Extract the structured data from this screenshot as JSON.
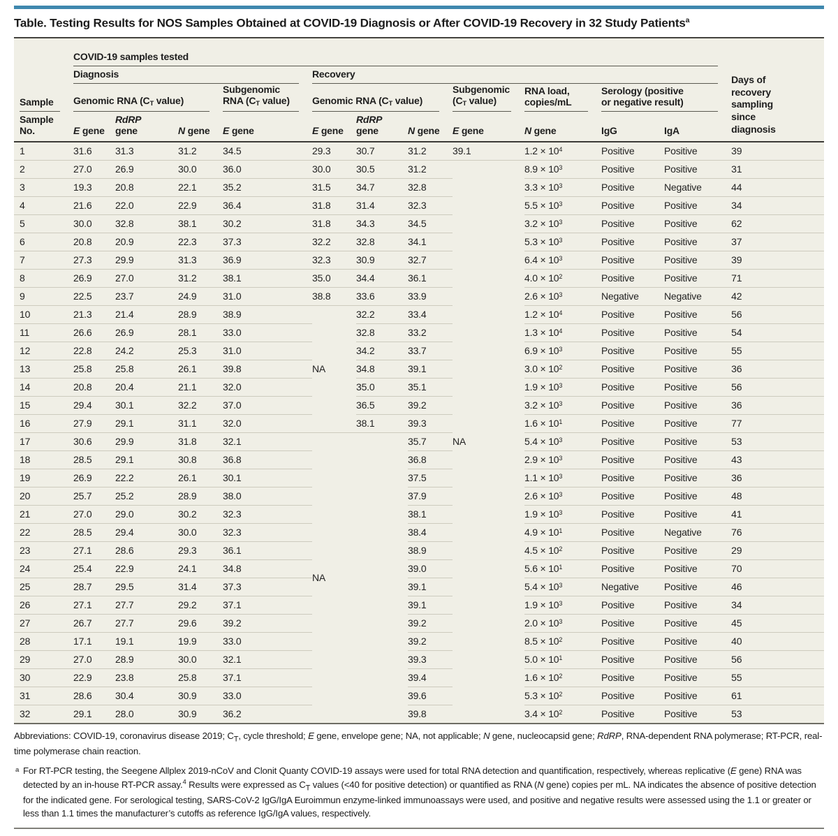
{
  "title": "Table. Testing Results for NOS Samples Obtained at COVID-19 Diagnosis or After COVID-19 Recovery in 32 Study Patients<sup>a</sup>",
  "colors": {
    "accent_bar": "#3F88AE",
    "table_background": "#F0EFE6",
    "rule_dark": "#3C3B37",
    "row_divider": "#CDCBBE"
  },
  "table": {
    "header_rows": [
      [
        {
          "t": "",
          "cls": "c0",
          "name": "header-spacer"
        },
        {
          "t": "COVID-19 samples tested",
          "c": 11,
          "u": true,
          "name": "group-covid-samples-tested"
        },
        {
          "t": "Days of<br>recovery<br>sampling<br>since<br>diagnosis",
          "r": 4,
          "cls": "days hbot",
          "name": "col-days-of-recovery"
        }
      ],
      [
        {
          "t": "",
          "cls": "c0",
          "name": "header-spacer"
        },
        {
          "t": "Diagnosis",
          "c": 4,
          "u": true,
          "name": "group-diagnosis"
        },
        {
          "t": "Recovery",
          "c": 7,
          "u": true,
          "name": "group-recovery"
        }
      ],
      [
        {
          "t": "Sample",
          "u": true,
          "cls": "c0",
          "name": "col-sample"
        },
        {
          "t": "Genomic RNA (C<sub>T</sub> value)",
          "c": 3,
          "u": true,
          "name": "group-diagnosis-genomic-rna"
        },
        {
          "t": "Subgenomic<br>RNA (C<sub>T</sub> value)",
          "u": true,
          "name": "group-diagnosis-subgenomic-rna"
        },
        {
          "t": "Genomic RNA (C<sub>T</sub> value)",
          "c": 3,
          "u": true,
          "name": "group-recovery-genomic-rna"
        },
        {
          "t": "Subgenomic<br>(C<sub>T</sub> value)",
          "u": true,
          "name": "group-recovery-subgenomic"
        },
        {
          "t": "RNA load,<br>copies/mL",
          "u": true,
          "name": "group-rna-load"
        },
        {
          "t": "Serology (positive<br>or negative result)",
          "c": 2,
          "u": true,
          "name": "group-serology"
        }
      ],
      [
        {
          "t": "Sample<br>No.",
          "cls": "c0",
          "name": "col-sample-no"
        },
        {
          "t": "<i>E</i> gene",
          "name": "col-diag-e-gene"
        },
        {
          "t": "<i>RdRP</i><br>gene",
          "name": "col-diag-rdrp-gene"
        },
        {
          "t": "<i>N</i> gene",
          "name": "col-diag-n-gene"
        },
        {
          "t": "<i>E</i> gene",
          "name": "col-diag-subgenomic-e-gene"
        },
        {
          "t": "<i>E</i> gene",
          "name": "col-rec-e-gene"
        },
        {
          "t": "<i>RdRP</i><br>gene",
          "name": "col-rec-rdrp-gene"
        },
        {
          "t": "<i>N</i> gene",
          "name": "col-rec-n-gene"
        },
        {
          "t": "<i>E</i> gene",
          "name": "col-rec-subgenomic-e-gene"
        },
        {
          "t": "<i>N</i> gene",
          "name": "col-rna-load-n-gene"
        },
        {
          "t": "IgG",
          "name": "col-igg"
        },
        {
          "t": "IgA",
          "name": "col-iga"
        }
      ]
    ],
    "merges": [
      {
        "r": 1,
        "c": 8,
        "rs": 31,
        "cs": 1
      },
      {
        "r": 9,
        "c": 5,
        "rs": 7,
        "cs": 1
      },
      {
        "r": 16,
        "c": 5,
        "rs": 16,
        "cs": 2
      }
    ],
    "rows": [
      [
        "1",
        "31.6",
        "31.3",
        "31.2",
        "34.5",
        "29.3",
        "30.7",
        "31.2",
        "39.1",
        "1.2 × 10<sup>4</sup>",
        "Positive",
        "Positive",
        "39"
      ],
      [
        "2",
        "27.0",
        "26.9",
        "30.0",
        "36.0",
        "30.0",
        "30.5",
        "31.2",
        "NA",
        "8.9 × 10<sup>3</sup>",
        "Positive",
        "Positive",
        "31"
      ],
      [
        "3",
        "19.3",
        "20.8",
        "22.1",
        "35.2",
        "31.5",
        "34.7",
        "32.8",
        null,
        "3.3 × 10<sup>3</sup>",
        "Positive",
        "Negative",
        "44"
      ],
      [
        "4",
        "21.6",
        "22.0",
        "22.9",
        "36.4",
        "31.8",
        "31.4",
        "32.3",
        null,
        "5.5 × 10<sup>3</sup>",
        "Positive",
        "Positive",
        "34"
      ],
      [
        "5",
        "30.0",
        "32.8",
        "38.1",
        "30.2",
        "31.8",
        "34.3",
        "34.5",
        null,
        "3.2 × 10<sup>3</sup>",
        "Positive",
        "Positive",
        "62"
      ],
      [
        "6",
        "20.8",
        "20.9",
        "22.3",
        "37.3",
        "32.2",
        "32.8",
        "34.1",
        null,
        "5.3 × 10<sup>3</sup>",
        "Positive",
        "Positive",
        "37"
      ],
      [
        "7",
        "27.3",
        "29.9",
        "31.3",
        "36.9",
        "32.3",
        "30.9",
        "32.7",
        null,
        "6.4 × 10<sup>3</sup>",
        "Positive",
        "Positive",
        "39"
      ],
      [
        "8",
        "26.9",
        "27.0",
        "31.2",
        "38.1",
        "35.0",
        "34.4",
        "36.1",
        null,
        "4.0 × 10<sup>2</sup>",
        "Positive",
        "Positive",
        "71"
      ],
      [
        "9",
        "22.5",
        "23.7",
        "24.9",
        "31.0",
        "38.8",
        "33.6",
        "33.9",
        null,
        "2.6 × 10<sup>3</sup>",
        "Negative",
        "Negative",
        "42"
      ],
      [
        "10",
        "21.3",
        "21.4",
        "28.9",
        "38.9",
        "NA",
        "32.2",
        "33.4",
        null,
        "1.2 × 10<sup>4</sup>",
        "Positive",
        "Positive",
        "56"
      ],
      [
        "11",
        "26.6",
        "26.9",
        "28.1",
        "33.0",
        null,
        "32.8",
        "33.2",
        null,
        "1.3 × 10<sup>4</sup>",
        "Positive",
        "Positive",
        "54"
      ],
      [
        "12",
        "22.8",
        "24.2",
        "25.3",
        "31.0",
        null,
        "34.2",
        "33.7",
        null,
        "6.9 × 10<sup>3</sup>",
        "Positive",
        "Positive",
        "55"
      ],
      [
        "13",
        "25.8",
        "25.8",
        "26.1",
        "39.8",
        null,
        "34.8",
        "39.1",
        null,
        "3.0 × 10<sup>2</sup>",
        "Positive",
        "Positive",
        "36"
      ],
      [
        "14",
        "20.8",
        "20.4",
        "21.1",
        "32.0",
        null,
        "35.0",
        "35.1",
        null,
        "1.9 × 10<sup>3</sup>",
        "Positive",
        "Positive",
        "56"
      ],
      [
        "15",
        "29.4",
        "30.1",
        "32.2",
        "37.0",
        null,
        "36.5",
        "39.2",
        null,
        "3.2 × 10<sup>3</sup>",
        "Positive",
        "Positive",
        "36"
      ],
      [
        "16",
        "27.9",
        "29.1",
        "31.1",
        "32.0",
        null,
        "38.1",
        "39.3",
        null,
        "1.6 × 10<sup>1</sup>",
        "Positive",
        "Positive",
        "77"
      ],
      [
        "17",
        "30.6",
        "29.9",
        "31.8",
        "32.1",
        "NA",
        null,
        "35.7",
        null,
        "5.4 × 10<sup>3</sup>",
        "Positive",
        "Positive",
        "53"
      ],
      [
        "18",
        "28.5",
        "29.1",
        "30.8",
        "36.8",
        null,
        null,
        "36.8",
        null,
        "2.9 × 10<sup>3</sup>",
        "Positive",
        "Positive",
        "43"
      ],
      [
        "19",
        "26.9",
        "22.2",
        "26.1",
        "30.1",
        null,
        null,
        "37.5",
        null,
        "1.1 × 10<sup>3</sup>",
        "Positive",
        "Positive",
        "36"
      ],
      [
        "20",
        "25.7",
        "25.2",
        "28.9",
        "38.0",
        null,
        null,
        "37.9",
        null,
        "2.6 × 10<sup>3</sup>",
        "Positive",
        "Positive",
        "48"
      ],
      [
        "21",
        "27.0",
        "29.0",
        "30.2",
        "32.3",
        null,
        null,
        "38.1",
        null,
        "1.9 × 10<sup>3</sup>",
        "Positive",
        "Positive",
        "41"
      ],
      [
        "22",
        "28.5",
        "29.4",
        "30.0",
        "32.3",
        null,
        null,
        "38.4",
        null,
        "4.9 × 10<sup>1</sup>",
        "Positive",
        "Negative",
        "76"
      ],
      [
        "23",
        "27.1",
        "28.6",
        "29.3",
        "36.1",
        null,
        null,
        "38.9",
        null,
        "4.5 × 10<sup>2</sup>",
        "Positive",
        "Positive",
        "29"
      ],
      [
        "24",
        "25.4",
        "22.9",
        "24.1",
        "34.8",
        null,
        null,
        "39.0",
        null,
        "5.6 × 10<sup>1</sup>",
        "Positive",
        "Positive",
        "70"
      ],
      [
        "25",
        "28.7",
        "29.5",
        "31.4",
        "37.3",
        null,
        null,
        "39.1",
        null,
        "5.4 × 10<sup>3</sup>",
        "Negative",
        "Positive",
        "46"
      ],
      [
        "26",
        "27.1",
        "27.7",
        "29.2",
        "37.1",
        null,
        null,
        "39.1",
        null,
        "1.9 × 10<sup>3</sup>",
        "Positive",
        "Positive",
        "34"
      ],
      [
        "27",
        "26.7",
        "27.7",
        "29.6",
        "39.2",
        null,
        null,
        "39.2",
        null,
        "2.0 × 10<sup>3</sup>",
        "Positive",
        "Positive",
        "45"
      ],
      [
        "28",
        "17.1",
        "19.1",
        "19.9",
        "33.0",
        null,
        null,
        "39.2",
        null,
        "8.5 × 10<sup>2</sup>",
        "Positive",
        "Positive",
        "40"
      ],
      [
        "29",
        "27.0",
        "28.9",
        "30.0",
        "32.1",
        null,
        null,
        "39.3",
        null,
        "5.0 × 10<sup>1</sup>",
        "Positive",
        "Positive",
        "56"
      ],
      [
        "30",
        "22.9",
        "23.8",
        "25.8",
        "37.1",
        null,
        null,
        "39.4",
        null,
        "1.6 × 10<sup>2</sup>",
        "Positive",
        "Positive",
        "55"
      ],
      [
        "31",
        "28.6",
        "30.4",
        "30.9",
        "33.0",
        null,
        null,
        "39.6",
        null,
        "5.3 × 10<sup>2</sup>",
        "Positive",
        "Positive",
        "61"
      ],
      [
        "32",
        "29.1",
        "28.0",
        "30.9",
        "36.2",
        null,
        null,
        "39.8",
        null,
        "3.4 × 10<sup>2</sup>",
        "Positive",
        "Positive",
        "53"
      ]
    ]
  },
  "footnotes": {
    "abbreviations": "Abbreviations: COVID-19, coronavirus disease 2019; C<sub>T</sub>, cycle threshold; <i>E</i> gene, envelope gene; NA, not applicable; <i>N</i> gene, nucleocapsid gene; <i>RdRP</i>, RNA-dependent RNA polymerase; RT-PCR, real-time polymerase chain reaction.",
    "marker": "a",
    "note_a": "For RT-PCR testing, the Seegene Allplex 2019-nCoV and Clonit Quanty COVID-19 assays were used for total RNA detection and quantification, respectively, whereas replicative (<i>E</i> gene) RNA was detected by an in-house RT-PCR assay.<sup>4</sup> Results were expressed as C<sub>T</sub> values (&lt;40 for positive detection) or quantified as RNA (<i>N</i> gene) copies per mL. NA indicates the absence of positive detection for the indicated gene. For serological testing, SARS-CoV-2 IgG/IgA Euroimmun enzyme-linked immunoassays were used, and positive and negative results were assessed using the 1.1 or greater or less than 1.1 times the manufacturer&#8217;s cutoffs as reference IgG/IgA values, respectively."
  }
}
